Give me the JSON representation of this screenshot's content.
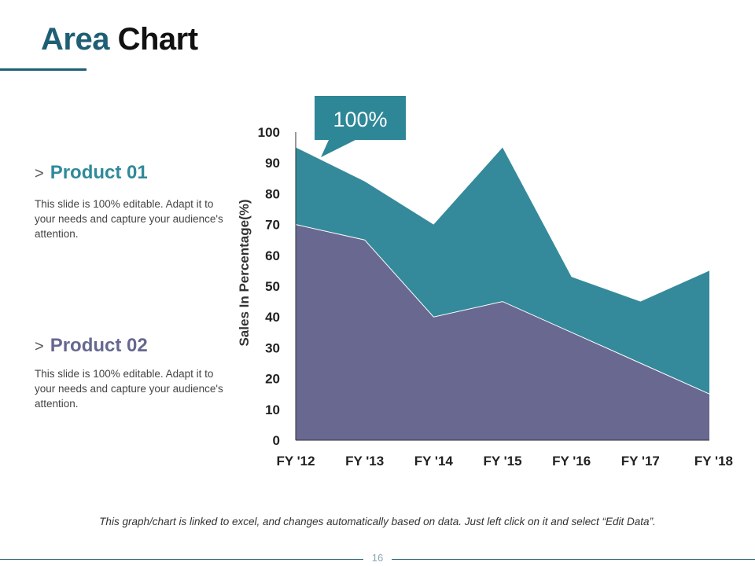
{
  "header": {
    "title_word1": "Area",
    "title_word2": "Chart"
  },
  "products": [
    {
      "chevron": ">",
      "label": "Product 01",
      "description": "This slide is 100% editable. Adapt it to your needs and capture your audience's attention."
    },
    {
      "chevron": ">",
      "label": "Product 02",
      "description": "This slide is 100% editable. Adapt it to your needs and capture your audience's attention."
    }
  ],
  "callout": {
    "text": "100%"
  },
  "footnote": "This graph/chart is linked to excel, and changes automatically based on data. Just left click on it and select “Edit Data”.",
  "page_number": "16",
  "colors": {
    "accent": "#1f5f75",
    "product01": "#2f8a99",
    "product02": "#66688f"
  },
  "chart_data": {
    "type": "area",
    "stacked": false,
    "title": "",
    "xlabel": "",
    "ylabel": "Sales In Percentage(%)",
    "categories": [
      "FY '12",
      "FY '13",
      "FY '14",
      "FY '15",
      "FY '16",
      "FY '17",
      "FY '18"
    ],
    "ylim": [
      0,
      100
    ],
    "yticks": [
      0,
      10,
      20,
      30,
      40,
      50,
      60,
      70,
      80,
      90,
      100
    ],
    "series": [
      {
        "name": "Product 01",
        "color": "#348a9b",
        "values": [
          95,
          84,
          70,
          95,
          53,
          45,
          55
        ]
      },
      {
        "name": "Product 02",
        "color": "#686891",
        "values": [
          70,
          65,
          40,
          45,
          35,
          25,
          15
        ]
      }
    ]
  }
}
